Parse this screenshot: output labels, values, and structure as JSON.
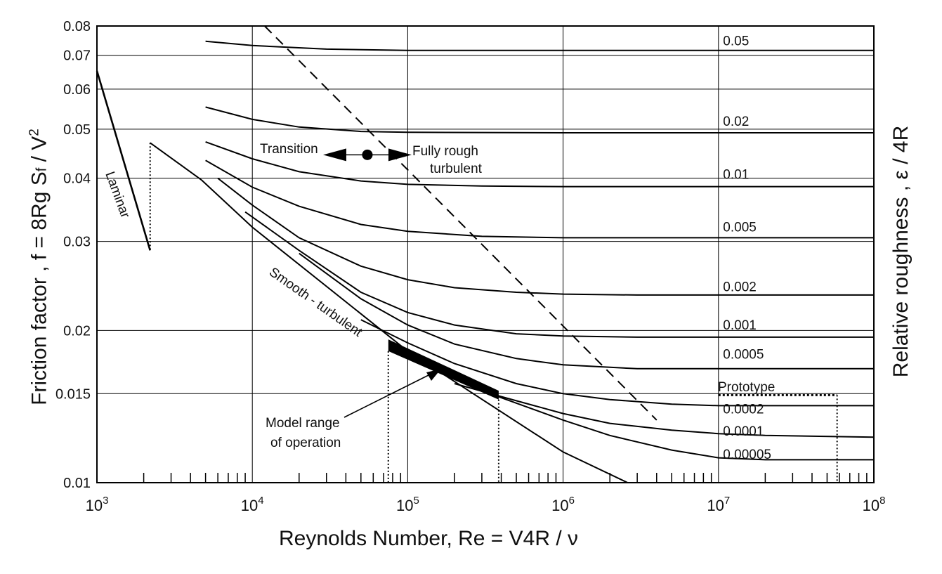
{
  "chart_data": {
    "type": "line",
    "title": "",
    "xlabel": "Reynolds Number, Re = V4R / ν",
    "ylabel": "Friction  factor ,  f = 8Rg S",
    "ylabel_sub": "f",
    "ylabel_tail": " / V",
    "ylabel_sup": "2",
    "y2label": "Relative  roughness ,  ε / 4R",
    "xscale": "log",
    "yscale": "log",
    "xlim": [
      1000,
      100000000
    ],
    "ylim": [
      0.01,
      0.08
    ],
    "grid": true,
    "x_ticks": [
      {
        "base": "10",
        "exp": "3",
        "value": 1000
      },
      {
        "base": "10",
        "exp": "4",
        "value": 10000
      },
      {
        "base": "10",
        "exp": "5",
        "value": 100000
      },
      {
        "base": "10",
        "exp": "6",
        "value": 1000000
      },
      {
        "base": "10",
        "exp": "7",
        "value": 10000000
      },
      {
        "base": "10",
        "exp": "8",
        "value": 100000000
      }
    ],
    "y_ticks": [
      {
        "label": "0.01",
        "value": 0.01
      },
      {
        "label": "0.015",
        "value": 0.015
      },
      {
        "label": "0.02",
        "value": 0.02
      },
      {
        "label": "0.03",
        "value": 0.03
      },
      {
        "label": "0.04",
        "value": 0.04
      },
      {
        "label": "0.05",
        "value": 0.05
      },
      {
        "label": "0.06",
        "value": 0.06
      },
      {
        "label": "0.07",
        "value": 0.07
      },
      {
        "label": "0.08",
        "value": 0.08
      }
    ],
    "series": [
      {
        "name": "0.05",
        "label_x": 10700000,
        "label_y": 0.0733,
        "x": [
          5000,
          10000,
          30000,
          100000,
          1000000,
          100000000
        ],
        "y": [
          0.0746,
          0.0732,
          0.072,
          0.0716,
          0.0716,
          0.0716
        ]
      },
      {
        "name": "0.02",
        "label_x": 10700000,
        "label_y": 0.0508,
        "x": [
          5000,
          10000,
          20000,
          50000,
          100000,
          1000000,
          100000000
        ],
        "y": [
          0.0553,
          0.0523,
          0.0505,
          0.0495,
          0.0493,
          0.0492,
          0.0492
        ]
      },
      {
        "name": "0.01",
        "label_x": 10700000,
        "label_y": 0.0399,
        "x": [
          5000,
          10000,
          20000,
          50000,
          100000,
          300000,
          1000000,
          100000000
        ],
        "y": [
          0.0472,
          0.0437,
          0.0412,
          0.0395,
          0.0389,
          0.0386,
          0.0385,
          0.0385
        ]
      },
      {
        "name": "0.005",
        "label_x": 10700000,
        "label_y": 0.0314,
        "x": [
          5000,
          10000,
          20000,
          50000,
          100000,
          300000,
          1000000,
          100000000
        ],
        "y": [
          0.0434,
          0.0384,
          0.0352,
          0.0324,
          0.0314,
          0.0307,
          0.0305,
          0.0305
        ]
      },
      {
        "name": "0.002",
        "label_x": 10700000,
        "label_y": 0.0239,
        "x": [
          6000,
          10000,
          20000,
          50000,
          100000,
          200000,
          500000,
          1000000,
          3000000,
          100000000
        ],
        "y": [
          0.04,
          0.0354,
          0.0305,
          0.0268,
          0.0252,
          0.0243,
          0.0238,
          0.0236,
          0.0235,
          0.0235
        ]
      },
      {
        "name": "0.001",
        "label_x": 10700000,
        "label_y": 0.0201,
        "x": [
          9000,
          20000,
          50000,
          100000,
          200000,
          500000,
          1000000,
          3000000,
          100000000
        ],
        "y": [
          0.0343,
          0.0288,
          0.0238,
          0.0217,
          0.0205,
          0.0197,
          0.0195,
          0.0194,
          0.0194
        ]
      },
      {
        "name": "0.0005",
        "label_x": 10700000,
        "label_y": 0.0176,
        "x": [
          20000,
          50000,
          100000,
          200000,
          500000,
          1000000,
          3000000,
          100000000
        ],
        "y": [
          0.0284,
          0.0231,
          0.0205,
          0.0188,
          0.0176,
          0.0171,
          0.0168,
          0.0168
        ]
      },
      {
        "name": "0.0002",
        "label_x": 10700000,
        "label_y": 0.0137,
        "x": [
          50000,
          100000,
          200000,
          500000,
          1000000,
          2000000,
          5000000,
          10000000,
          100000000
        ],
        "y": [
          0.021,
          0.0189,
          0.0172,
          0.0157,
          0.015,
          0.0146,
          0.0143,
          0.0142,
          0.0142
        ]
      },
      {
        "name": "0.0001",
        "label_x": 10700000,
        "label_y": 0.0124,
        "x": [
          200000,
          400000,
          1000000,
          2000000,
          5000000,
          10000000,
          20000000,
          100000000
        ],
        "y": [
          0.0157,
          0.0148,
          0.0137,
          0.0131,
          0.0127,
          0.0125,
          0.0124,
          0.0123
        ]
      },
      {
        "name": "0.00005",
        "label_x": 10700000,
        "label_y": 0.01115,
        "x": [
          300000,
          1000000,
          2000000,
          5000000,
          10000000,
          20000000,
          100000000
        ],
        "y": [
          0.0152,
          0.0133,
          0.0124,
          0.0116,
          0.0112,
          0.0111,
          0.0111
        ]
      }
    ],
    "smooth_turbulent": {
      "x": [
        4700,
        10000,
        100000,
        1000000,
        2600000
      ],
      "y": [
        0.0397,
        0.032,
        0.0182,
        0.0115,
        0.01
      ]
    },
    "laminar": {
      "x": [
        1000,
        2200
      ],
      "y": [
        0.0652,
        0.0288
      ]
    },
    "transition_boundary": {
      "x": [
        12000,
        4000000
      ],
      "y": [
        0.08,
        0.0133
      ]
    },
    "model_range": {
      "x_start": 75000,
      "x_end": 385000,
      "lower": [
        0.0182,
        0.0146
      ],
      "upper": [
        0.0192,
        0.0152
      ]
    },
    "prototype": {
      "x_start": 10000000,
      "x_end": 58000000,
      "y": 0.0149
    },
    "critical_re": {
      "x": 2200,
      "y_top": 0.047,
      "y_bottom": 0.0288
    },
    "arrow_point": {
      "x": 55000,
      "y": 0.0445
    },
    "annotations": {
      "transition": "Transition",
      "fully_rough_1": "Fully rough",
      "fully_rough_2": "turbulent",
      "laminar": "Laminar",
      "smooth_turbulent": "Smooth  -  turbulent",
      "model_range_1": "Model range",
      "model_range_2": "of operation",
      "prototype": "Prototype"
    }
  }
}
